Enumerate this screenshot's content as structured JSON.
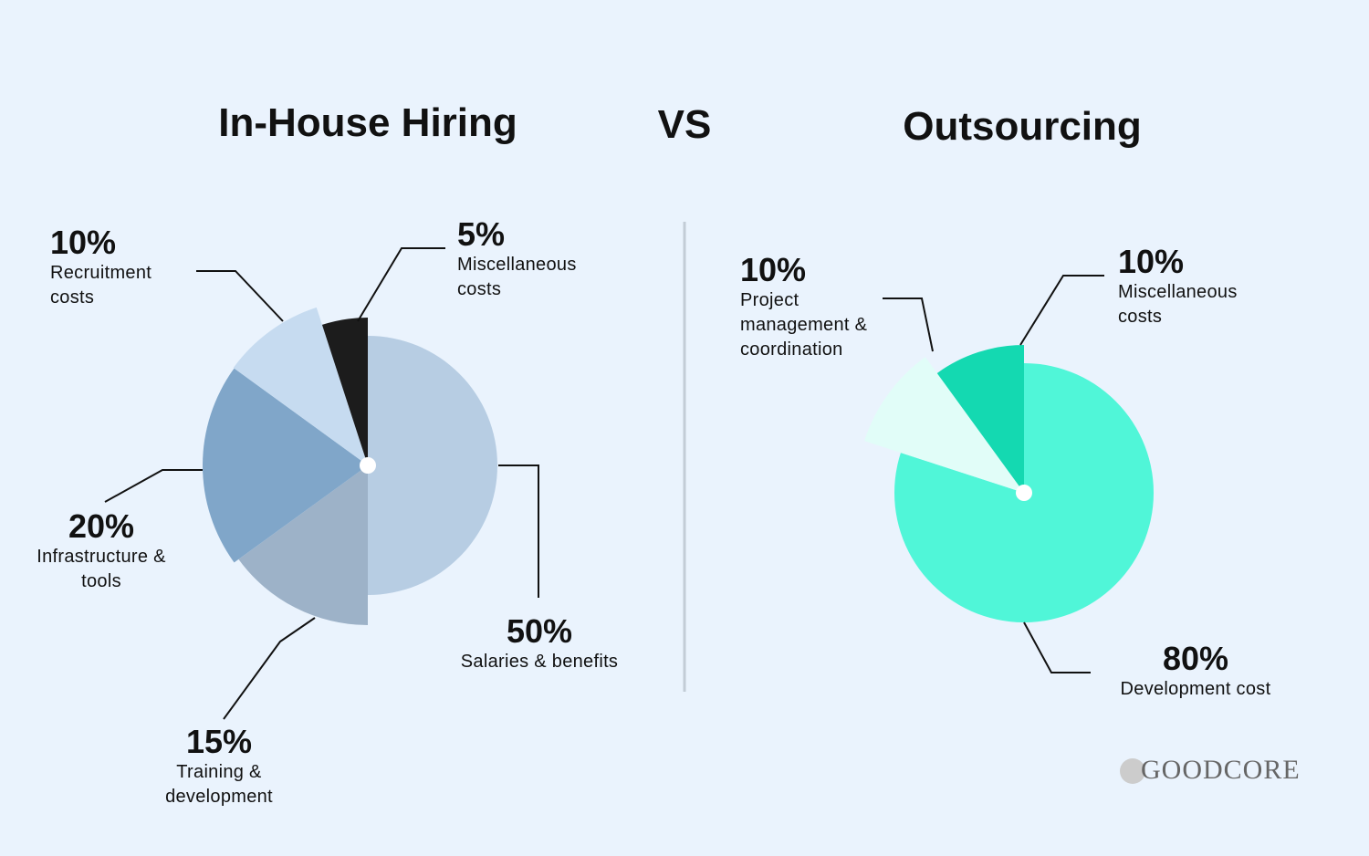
{
  "chart_data": [
    {
      "type": "pie",
      "title": "In-House Hiring",
      "categories": [
        "Salaries & benefits",
        "Training & development",
        "Infrastructure & tools",
        "Recruitment costs",
        "Miscellaneous costs"
      ],
      "values": [
        50,
        15,
        20,
        10,
        5
      ],
      "value_labels": [
        "50%",
        "15%",
        "20%",
        "10%",
        "5%"
      ],
      "colors": [
        "#b7cde3",
        "#9db2c8",
        "#80a6c9",
        "#c6dbf0",
        "#1c1c1c"
      ]
    },
    {
      "type": "pie",
      "title": "Outsourcing",
      "categories": [
        "Development cost",
        "Project management & coordination",
        "Miscellaneous costs"
      ],
      "values": [
        80,
        10,
        10
      ],
      "value_labels": [
        "80%",
        "10%",
        "10%"
      ],
      "colors": [
        "#50f6d8",
        "#e1fdf8",
        "#14d9b1"
      ]
    }
  ],
  "vs": "VS",
  "logo": "GOODCORE"
}
